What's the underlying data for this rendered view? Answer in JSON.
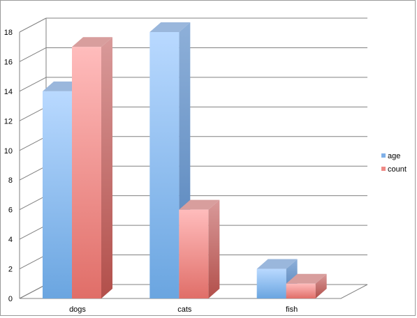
{
  "chart_data": {
    "type": "bar",
    "categories": [
      "dogs",
      "cats",
      "fish"
    ],
    "series": [
      {
        "name": "age",
        "values": [
          14,
          18,
          2
        ],
        "color": "#7fb0e8"
      },
      {
        "name": "count",
        "values": [
          17,
          6,
          1
        ],
        "color": "#ef8a86"
      }
    ],
    "ylim": [
      0,
      18
    ],
    "yticks": [
      0,
      2,
      4,
      6,
      8,
      10,
      12,
      14,
      16,
      18
    ],
    "grid": true,
    "legend_position": "right",
    "style": "3d-clustered-column"
  }
}
